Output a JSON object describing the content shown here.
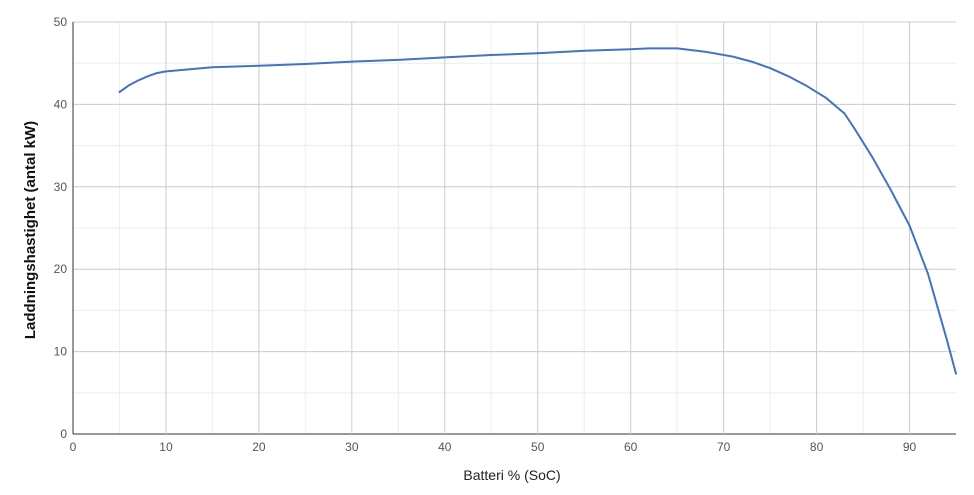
{
  "chart_data": {
    "type": "line",
    "title": "",
    "xlabel": "Batteri % (SoC)",
    "ylabel": "Laddningshastighet (antal kW)",
    "xlim": [
      0,
      95
    ],
    "ylim": [
      0,
      50
    ],
    "xticks": [
      0,
      10,
      20,
      30,
      40,
      50,
      60,
      70,
      80,
      90
    ],
    "yticks": [
      0,
      10,
      20,
      30,
      40,
      50
    ],
    "grid": true,
    "legend": "none",
    "series": [
      {
        "color": "#4472C4",
        "x": [
          5,
          6,
          7,
          8,
          9,
          10,
          12,
          15,
          20,
          25,
          30,
          35,
          40,
          45,
          50,
          55,
          60,
          62,
          65,
          68,
          71,
          73,
          75,
          77,
          79,
          81,
          83,
          84,
          85,
          86,
          88,
          90,
          92,
          94,
          95
        ],
        "y": [
          41.5,
          42.3,
          42.9,
          43.4,
          43.8,
          44.0,
          44.2,
          44.5,
          44.7,
          44.9,
          45.2,
          45.4,
          45.7,
          46.0,
          46.2,
          46.5,
          46.7,
          46.8,
          46.8,
          46.4,
          45.8,
          45.2,
          44.4,
          43.4,
          42.2,
          40.8,
          38.9,
          37.2,
          35.4,
          33.6,
          29.6,
          25.3,
          19.4,
          11.5,
          7.3
        ]
      }
    ]
  }
}
